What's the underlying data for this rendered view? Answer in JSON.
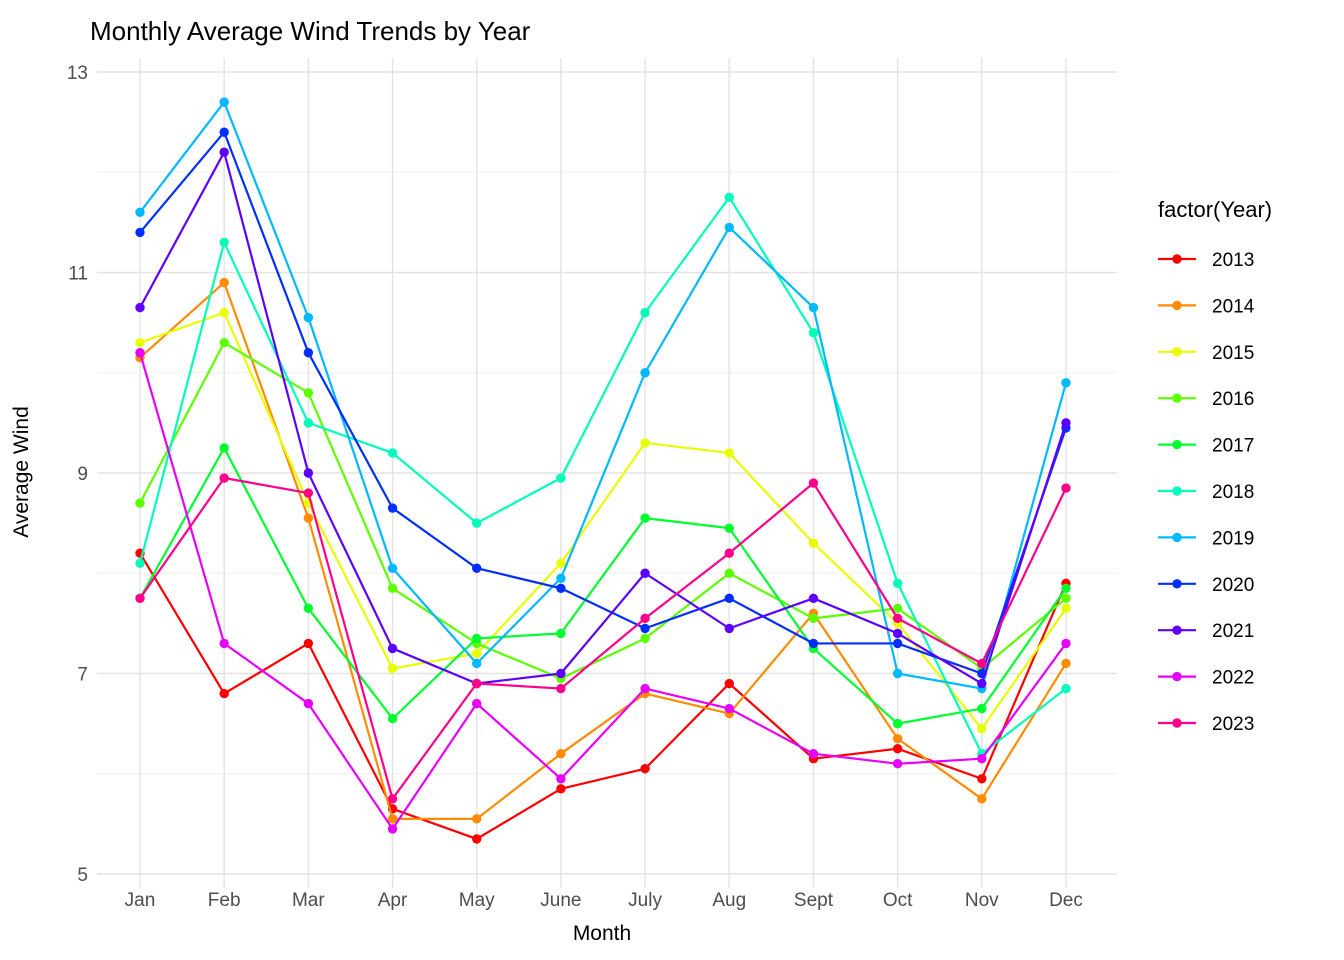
{
  "title": "Monthly Average Wind Trends by Year",
  "x_axis_label": "Month",
  "y_axis_label": "Average Wind",
  "legend": {
    "title": "factor(Year)",
    "entries": [
      "2013",
      "2014",
      "2015",
      "2016",
      "2017",
      "2018",
      "2019",
      "2020",
      "2021",
      "2022",
      "2023"
    ]
  },
  "colors": {
    "grid_major": "#e3e3e3",
    "grid_minor": "#f0f0f0",
    "axis_text": "#4d4d4d",
    "title_text": "#000000",
    "background": "#ffffff"
  },
  "chart_data": {
    "type": "line",
    "title": "Monthly Average Wind Trends by Year",
    "xlabel": "Month",
    "ylabel": "Average Wind",
    "legend_title": "factor(Year)",
    "legend_position": "right",
    "grid": true,
    "categories": [
      "Jan",
      "Feb",
      "Mar",
      "Apr",
      "May",
      "June",
      "July",
      "Aug",
      "Sept",
      "Oct",
      "Nov",
      "Dec"
    ],
    "y_major_ticks": [
      5,
      7,
      9,
      11,
      13
    ],
    "y_minor_ticks": [
      6,
      8,
      10,
      12
    ],
    "ylim": [
      5,
      13
    ],
    "series": [
      {
        "name": "2013",
        "color": "#FF0000",
        "values": [
          8.2,
          6.8,
          7.3,
          5.65,
          5.35,
          5.85,
          6.05,
          6.9,
          6.15,
          6.25,
          5.95,
          7.9
        ]
      },
      {
        "name": "2014",
        "color": "#FF8B00",
        "values": [
          10.15,
          10.9,
          8.55,
          5.55,
          5.55,
          6.2,
          6.8,
          6.6,
          7.6,
          6.35,
          5.75,
          7.1
        ]
      },
      {
        "name": "2015",
        "color": "#E8FF00",
        "values": [
          10.3,
          10.6,
          8.7,
          7.05,
          7.2,
          8.1,
          9.3,
          9.2,
          8.3,
          7.5,
          6.45,
          7.65
        ]
      },
      {
        "name": "2016",
        "color": "#5DFF00",
        "values": [
          8.7,
          10.3,
          9.8,
          7.85,
          7.3,
          6.95,
          7.35,
          8.0,
          7.55,
          7.65,
          7.05,
          7.75
        ]
      },
      {
        "name": "2017",
        "color": "#00FF2E",
        "values": [
          7.75,
          9.25,
          7.65,
          6.55,
          7.35,
          7.4,
          8.55,
          8.45,
          7.25,
          6.5,
          6.65,
          7.85
        ]
      },
      {
        "name": "2018",
        "color": "#00FFB9",
        "values": [
          8.1,
          11.3,
          9.5,
          9.2,
          8.5,
          8.95,
          10.6,
          11.75,
          10.4,
          7.9,
          6.2,
          6.85
        ]
      },
      {
        "name": "2019",
        "color": "#00B9FF",
        "values": [
          11.6,
          12.7,
          10.55,
          8.05,
          7.1,
          7.95,
          10.0,
          11.45,
          10.65,
          7.0,
          6.85,
          9.9
        ]
      },
      {
        "name": "2020",
        "color": "#002EFF",
        "values": [
          11.4,
          12.4,
          10.2,
          8.65,
          8.05,
          7.85,
          7.45,
          7.75,
          7.3,
          7.3,
          7.0,
          9.45
        ]
      },
      {
        "name": "2021",
        "color": "#5D00FF",
        "values": [
          10.65,
          12.2,
          9.0,
          7.25,
          6.9,
          7.0,
          8.0,
          7.45,
          7.75,
          7.4,
          6.9,
          9.5
        ]
      },
      {
        "name": "2022",
        "color": "#E800FF",
        "values": [
          10.2,
          7.3,
          6.7,
          5.45,
          6.7,
          5.95,
          6.85,
          6.65,
          6.2,
          6.1,
          6.15,
          7.3
        ]
      },
      {
        "name": "2023",
        "color": "#FF008B",
        "values": [
          7.75,
          8.95,
          8.8,
          5.75,
          6.9,
          6.85,
          7.55,
          8.2,
          8.9,
          7.55,
          7.1,
          8.85
        ]
      }
    ]
  }
}
